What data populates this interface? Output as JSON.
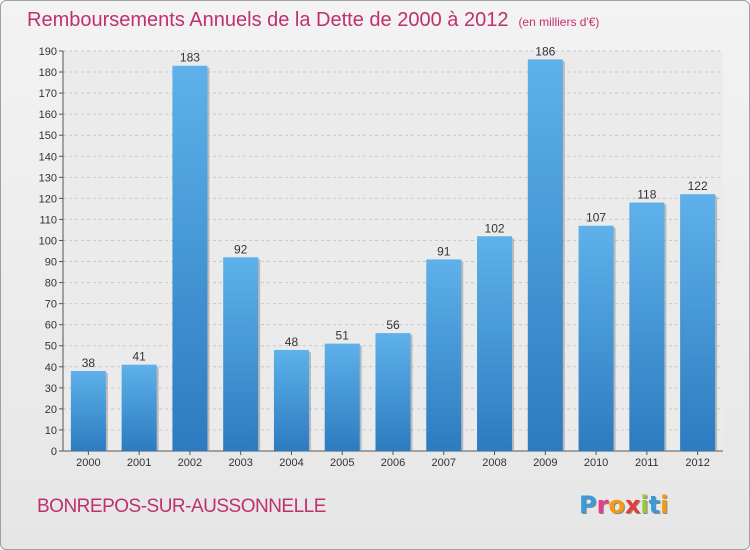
{
  "title": "Remboursements Annuels de la Dette de 2000 à 2012",
  "unit": "(en milliers d'€)",
  "commune": "BONREPOS-SUR-AUSSONNELLE",
  "logo": {
    "letters": [
      "P",
      "r",
      "o",
      "x",
      "i",
      "t",
      "i"
    ],
    "colors": [
      "#3a9bd8",
      "#e83a8a",
      "#f39c12",
      "#e83a3a",
      "#9bc53d",
      "#3a9bd8",
      "#f39c12"
    ]
  },
  "colors": {
    "bar_light": "#5eb1ea",
    "bar_dark": "#2c7bc0",
    "title": "#c0306e"
  },
  "chart_data": {
    "type": "bar",
    "title": "Remboursements Annuels de la Dette de 2000 à 2012",
    "xlabel": "",
    "ylabel": "",
    "categories": [
      "2000",
      "2001",
      "2002",
      "2003",
      "2004",
      "2005",
      "2006",
      "2007",
      "2008",
      "2009",
      "2010",
      "2011",
      "2012"
    ],
    "values": [
      38,
      41,
      183,
      92,
      48,
      51,
      56,
      91,
      102,
      186,
      107,
      118,
      122
    ],
    "ylim": [
      0,
      190
    ],
    "yticks": [
      0,
      10,
      20,
      30,
      40,
      50,
      60,
      70,
      80,
      90,
      100,
      110,
      120,
      130,
      140,
      150,
      160,
      170,
      180,
      190
    ],
    "grid": true
  }
}
